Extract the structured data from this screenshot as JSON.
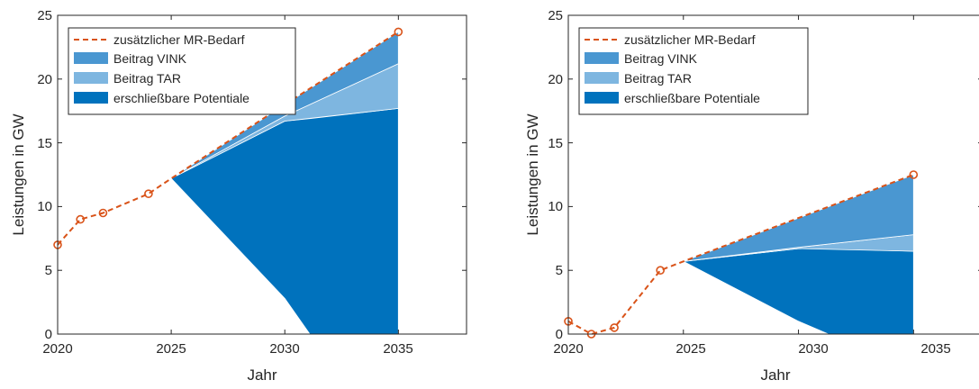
{
  "chart_data": [
    {
      "type": "area",
      "xlabel": "Jahr",
      "ylabel": "Leistungen in GW",
      "xlim": [
        2020,
        2038
      ],
      "ylim": [
        0,
        25
      ],
      "xticks": [
        "2020",
        "2025",
        "2030",
        "2035"
      ],
      "yticks": [
        "0",
        "5",
        "10",
        "15",
        "20",
        "25"
      ],
      "grid": false,
      "legend_position": "top-left",
      "colors": {
        "demand": "#D95319",
        "vink": "#4A97D1",
        "tar": "#7EB6E0",
        "potentials": "#0072BD"
      },
      "demand": {
        "name": "zusätzlicher MR-Bedarf",
        "x": [
          2020,
          2021,
          2022,
          2024,
          2025,
          2030,
          2035
        ],
        "y": [
          7.0,
          9.0,
          9.5,
          11.0,
          12.2,
          18.0,
          23.7
        ],
        "markers_at": [
          2020,
          2021,
          2022,
          2024,
          2035
        ]
      },
      "series": [
        {
          "name": "erschließbare Potentiale",
          "x": [
            2025,
            2030,
            2031.1,
            2035
          ],
          "lower": [
            12.2,
            2.8,
            0,
            0
          ],
          "upper": [
            12.2,
            16.7,
            16.9,
            17.7
          ]
        },
        {
          "name": "Beitrag TAR",
          "x": [
            2025,
            2030,
            2035
          ],
          "lower": [
            12.2,
            16.7,
            17.7
          ],
          "upper": [
            12.2,
            17.1,
            21.2
          ]
        },
        {
          "name": "Beitrag VINK",
          "x": [
            2025,
            2030,
            2035
          ],
          "lower": [
            12.2,
            17.1,
            21.2
          ],
          "upper": [
            12.2,
            18.0,
            23.7
          ]
        }
      ]
    },
    {
      "type": "area",
      "xlabel": "Jahr",
      "ylabel": "Leistungen in GW",
      "xlim": [
        2020,
        2038
      ],
      "ylim": [
        0,
        25
      ],
      "xticks": [
        "2020",
        "2025",
        "2030",
        "2035"
      ],
      "yticks": [
        "0",
        "5",
        "10",
        "15",
        "20",
        "25"
      ],
      "grid": false,
      "legend_position": "top-left",
      "colors": {
        "demand": "#D95319",
        "vink": "#4A97D1",
        "tar": "#7EB6E0",
        "potentials": "#0072BD"
      },
      "demand": {
        "name": "zusätzlicher MR-Bedarf",
        "x": [
          2020,
          2021,
          2022,
          2024,
          2025,
          2030,
          2035
        ],
        "y": [
          1.0,
          0.0,
          0.5,
          5.0,
          5.7,
          9.1,
          12.5
        ],
        "markers_at": [
          2020,
          2021,
          2022,
          2024,
          2035
        ]
      },
      "series": [
        {
          "name": "erschließbare Potentiale",
          "x": [
            2025,
            2030,
            2031.3,
            2035
          ],
          "lower": [
            5.7,
            1.0,
            0,
            0
          ],
          "upper": [
            5.7,
            6.7,
            6.7,
            6.5
          ]
        },
        {
          "name": "Beitrag TAR",
          "x": [
            2025,
            2030,
            2035
          ],
          "lower": [
            5.7,
            6.7,
            6.5
          ],
          "upper": [
            5.7,
            6.8,
            7.8
          ]
        },
        {
          "name": "Beitrag VINK",
          "x": [
            2025,
            2030,
            2035
          ],
          "lower": [
            5.7,
            6.8,
            7.8
          ],
          "upper": [
            5.7,
            9.1,
            12.5
          ]
        }
      ]
    }
  ]
}
